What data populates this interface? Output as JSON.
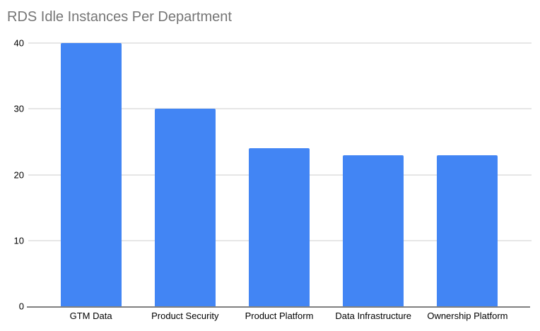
{
  "title": "RDS Idle Instances Per Department",
  "colors": {
    "bar": "#4285f4",
    "title_text": "#757575",
    "axis_label": "#000000",
    "gridline": "#cccccc",
    "baseline": "#808080",
    "background": "#ffffff"
  },
  "chart_data": {
    "type": "bar",
    "title": "RDS Idle Instances Per Department",
    "categories": [
      "GTM Data",
      "Product Security",
      "Product Platform",
      "Data Infrastructure",
      "Ownership Platform"
    ],
    "values": [
      40,
      30,
      24,
      23,
      23
    ],
    "xlabel": "",
    "ylabel": "",
    "ylim": [
      0,
      40
    ],
    "yticks": [
      0,
      10,
      20,
      30,
      40
    ],
    "grid": true,
    "legend_position": "none",
    "bar_orientation": "vertical"
  }
}
